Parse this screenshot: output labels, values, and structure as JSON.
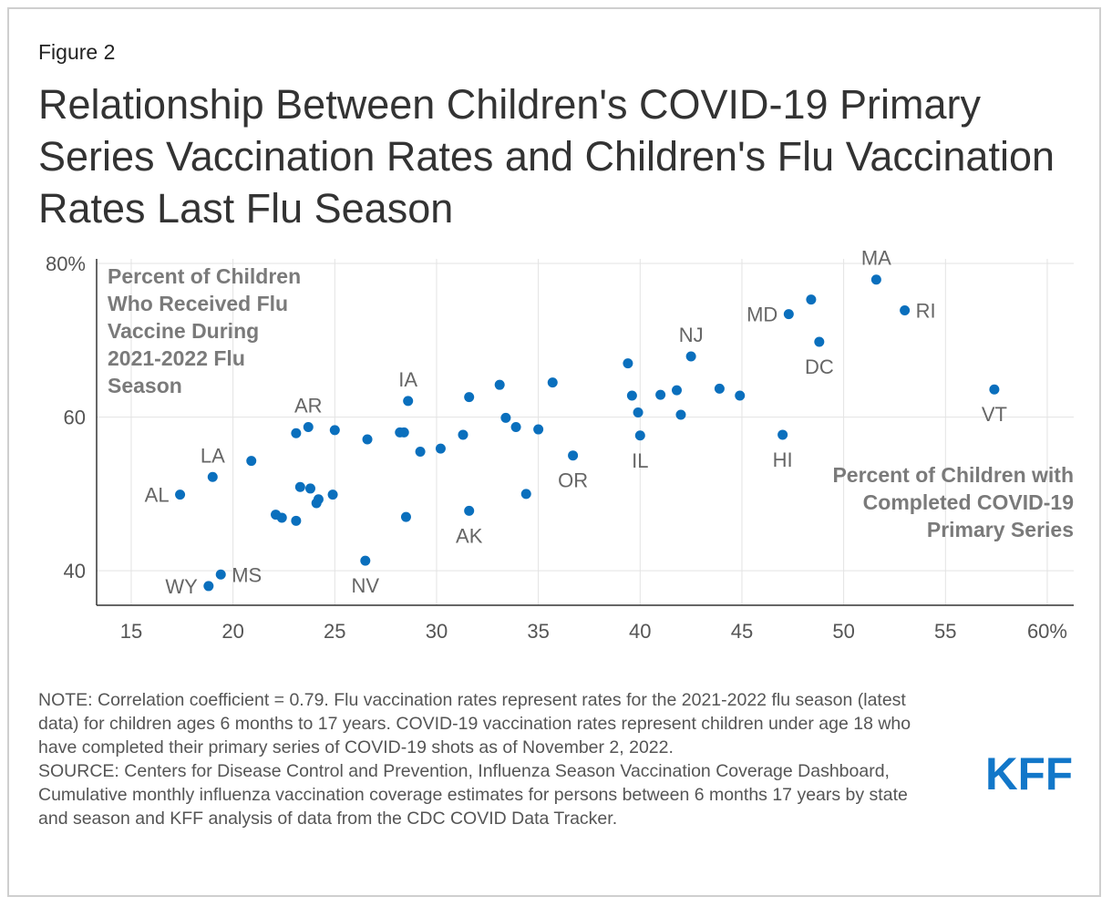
{
  "figure_label": "Figure 2",
  "title": "Relationship Between Children's COVID-19 Primary Series Vaccination Rates and Children's Flu Vaccination Rates Last Flu Season",
  "note": "NOTE: Correlation coefficient = 0.79. Flu vaccination rates represent rates for the 2021-2022 flu season (latest data) for children ages 6 months to 17 years. COVID-19 vaccination rates represent children under age 18 who have completed their primary series of COVID-19 shots as of November 2, 2022.",
  "source": "SOURCE: Centers for Disease Control and Prevention, Influenza Season Vaccination Coverage Dashboard, Cumulative monthly influenza vaccination coverage estimates for persons between 6 months 17 years by state and season and KFF analysis of data from the CDC COVID Data Tracker.",
  "logo_text": "KFF",
  "colors": {
    "point": "#0a6fbd",
    "logo": "#1277c9",
    "grid": "#e3e3e3",
    "axis": "#333333",
    "tick_label": "#555555",
    "point_label": "#666666",
    "axis_title": "#7a7a7a"
  },
  "chart_data": {
    "type": "scatter",
    "title": "Relationship Between Children's COVID-19 Primary Series Vaccination Rates and Children's Flu Vaccination Rates Last Flu Season",
    "xlabel": "Percent of Children with Completed COVID-19 Primary Series",
    "ylabel": "Percent of Children Who Received Flu Vaccine During 2021-2022 Flu Season",
    "xlim": [
      13.3,
      61.3
    ],
    "ylim": [
      35.5,
      80.6
    ],
    "xticks": [
      15,
      20,
      25,
      30,
      35,
      40,
      45,
      50,
      55,
      60
    ],
    "xtick_labels": [
      "15",
      "20",
      "25",
      "30",
      "35",
      "40",
      "45",
      "50",
      "55",
      "60%"
    ],
    "yticks": [
      40,
      60,
      80
    ],
    "ytick_labels": [
      "40",
      "60",
      "80%"
    ],
    "grid": true,
    "points": [
      {
        "x": 17.4,
        "y": 49.9,
        "label": "AL",
        "label_pos": "left"
      },
      {
        "x": 19.0,
        "y": 52.2,
        "label": "LA",
        "label_pos": "above"
      },
      {
        "x": 18.8,
        "y": 38.0,
        "label": "WY",
        "label_pos": "left"
      },
      {
        "x": 19.4,
        "y": 39.5,
        "label": "MS",
        "label_pos": "right"
      },
      {
        "x": 20.9,
        "y": 54.3,
        "label": ""
      },
      {
        "x": 22.1,
        "y": 47.3,
        "label": ""
      },
      {
        "x": 22.4,
        "y": 46.9,
        "label": ""
      },
      {
        "x": 23.1,
        "y": 46.5,
        "label": ""
      },
      {
        "x": 23.3,
        "y": 50.9,
        "label": ""
      },
      {
        "x": 23.8,
        "y": 50.7,
        "label": ""
      },
      {
        "x": 24.1,
        "y": 48.8,
        "label": ""
      },
      {
        "x": 24.2,
        "y": 49.3,
        "label": ""
      },
      {
        "x": 24.9,
        "y": 49.9,
        "label": ""
      },
      {
        "x": 23.1,
        "y": 57.9,
        "label": ""
      },
      {
        "x": 23.7,
        "y": 58.7,
        "label": "AR",
        "label_pos": "above"
      },
      {
        "x": 25.0,
        "y": 58.3,
        "label": ""
      },
      {
        "x": 26.6,
        "y": 57.1,
        "label": ""
      },
      {
        "x": 26.5,
        "y": 41.3,
        "label": "NV",
        "label_pos": "below"
      },
      {
        "x": 28.2,
        "y": 58.0,
        "label": ""
      },
      {
        "x": 28.4,
        "y": 58.0,
        "label": ""
      },
      {
        "x": 28.6,
        "y": 62.1,
        "label": "IA",
        "label_pos": "above"
      },
      {
        "x": 28.5,
        "y": 47.0,
        "label": ""
      },
      {
        "x": 29.2,
        "y": 55.5,
        "label": ""
      },
      {
        "x": 30.2,
        "y": 55.9,
        "label": ""
      },
      {
        "x": 31.3,
        "y": 57.7,
        "label": ""
      },
      {
        "x": 31.6,
        "y": 62.6,
        "label": ""
      },
      {
        "x": 31.6,
        "y": 47.8,
        "label": "AK",
        "label_pos": "below"
      },
      {
        "x": 33.1,
        "y": 64.2,
        "label": ""
      },
      {
        "x": 33.4,
        "y": 59.9,
        "label": ""
      },
      {
        "x": 33.9,
        "y": 58.7,
        "label": ""
      },
      {
        "x": 34.4,
        "y": 50.0,
        "label": ""
      },
      {
        "x": 35.0,
        "y": 58.4,
        "label": ""
      },
      {
        "x": 35.7,
        "y": 64.5,
        "label": ""
      },
      {
        "x": 36.7,
        "y": 55.0,
        "label": "OR",
        "label_pos": "below"
      },
      {
        "x": 39.4,
        "y": 67.0,
        "label": ""
      },
      {
        "x": 39.6,
        "y": 62.8,
        "label": ""
      },
      {
        "x": 39.9,
        "y": 60.6,
        "label": ""
      },
      {
        "x": 40.0,
        "y": 57.6,
        "label": "IL",
        "label_pos": "below"
      },
      {
        "x": 41.0,
        "y": 62.9,
        "label": ""
      },
      {
        "x": 41.8,
        "y": 63.5,
        "label": ""
      },
      {
        "x": 42.0,
        "y": 60.3,
        "label": ""
      },
      {
        "x": 42.5,
        "y": 67.9,
        "label": "NJ",
        "label_pos": "above"
      },
      {
        "x": 43.9,
        "y": 63.7,
        "label": ""
      },
      {
        "x": 44.9,
        "y": 62.8,
        "label": ""
      },
      {
        "x": 47.0,
        "y": 57.7,
        "label": "HI",
        "label_pos": "below"
      },
      {
        "x": 47.3,
        "y": 73.4,
        "label": "MD",
        "label_pos": "left"
      },
      {
        "x": 48.4,
        "y": 75.3,
        "label": ""
      },
      {
        "x": 48.8,
        "y": 69.8,
        "label": "DC",
        "label_pos": "below"
      },
      {
        "x": 51.6,
        "y": 77.9,
        "label": "MA",
        "label_pos": "above"
      },
      {
        "x": 53.0,
        "y": 73.9,
        "label": "RI",
        "label_pos": "right"
      },
      {
        "x": 57.4,
        "y": 63.6,
        "label": "VT",
        "label_pos": "below"
      }
    ]
  }
}
